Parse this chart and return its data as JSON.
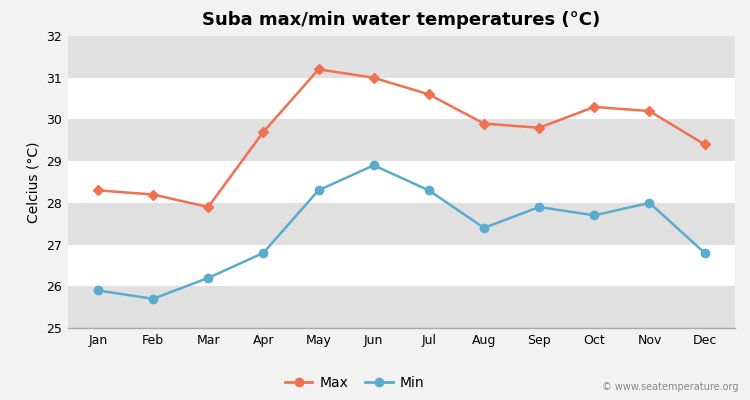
{
  "title": "Suba max/min water temperatures (°C)",
  "ylabel": "Celcius (°C)",
  "months": [
    "Jan",
    "Feb",
    "Mar",
    "Apr",
    "May",
    "Jun",
    "Jul",
    "Aug",
    "Sep",
    "Oct",
    "Nov",
    "Dec"
  ],
  "max_temps": [
    28.3,
    28.2,
    27.9,
    29.7,
    31.2,
    31.0,
    30.6,
    29.9,
    29.8,
    30.3,
    30.2,
    29.4
  ],
  "min_temps": [
    25.9,
    25.7,
    26.2,
    26.8,
    28.3,
    28.9,
    28.3,
    27.4,
    27.9,
    27.7,
    28.0,
    26.8
  ],
  "max_color": "#f07050",
  "min_color": "#5aabcc",
  "bg_color": "#f2f2f2",
  "plot_bg_color": "#e8e8e8",
  "band_color_light": "#ebebeb",
  "band_color_dark": "#e0e0e0",
  "grid_color": "#ffffff",
  "ylim": [
    25,
    32
  ],
  "yticks": [
    25,
    26,
    27,
    28,
    29,
    30,
    31,
    32
  ],
  "watermark": "© www.seatemperature.org",
  "legend_max": "Max",
  "legend_min": "Min",
  "title_fontsize": 13,
  "label_fontsize": 10,
  "tick_fontsize": 9
}
